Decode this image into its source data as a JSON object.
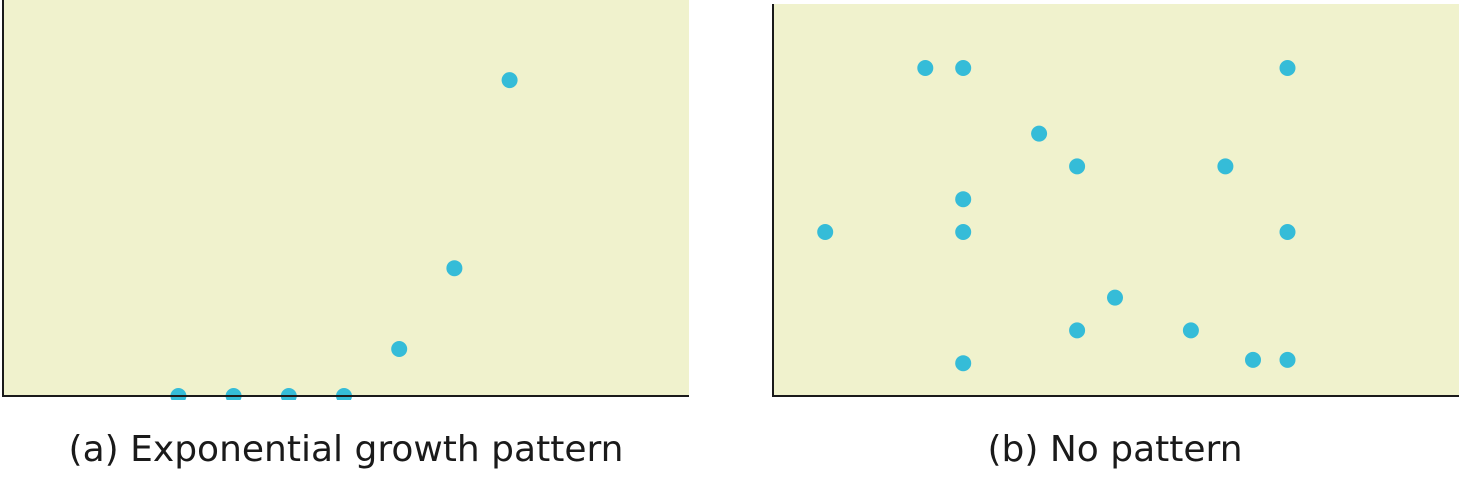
{
  "colors": {
    "plot_background": "#f0f2cd",
    "point": "#35bcd8",
    "axis": "#1a1a1a"
  },
  "chart_data": [
    {
      "type": "scatter",
      "caption": "(a) Exponential growth pattern",
      "xlim": [
        0,
        10
      ],
      "ylim": [
        0,
        10
      ],
      "grid": false,
      "points": [
        {
          "x": 2.0,
          "y": 0.0
        },
        {
          "x": 3.0,
          "y": 0.0
        },
        {
          "x": 4.0,
          "y": 0.0
        },
        {
          "x": 5.0,
          "y": 0.0
        },
        {
          "x": 6.0,
          "y": 1.34
        },
        {
          "x": 7.0,
          "y": 3.64
        },
        {
          "x": 8.0,
          "y": 9.0
        }
      ]
    },
    {
      "type": "scatter",
      "caption": "(b) No pattern",
      "xlim": [
        0,
        10
      ],
      "ylim": [
        0,
        10
      ],
      "grid": false,
      "points": [
        {
          "x": 2.25,
          "y": 10.0
        },
        {
          "x": 2.8,
          "y": 10.0
        },
        {
          "x": 7.5,
          "y": 10.0
        },
        {
          "x": 3.9,
          "y": 8.0
        },
        {
          "x": 4.45,
          "y": 7.0
        },
        {
          "x": 6.6,
          "y": 7.0
        },
        {
          "x": 2.8,
          "y": 6.0
        },
        {
          "x": 0.8,
          "y": 5.0
        },
        {
          "x": 2.8,
          "y": 5.0
        },
        {
          "x": 7.5,
          "y": 5.0
        },
        {
          "x": 5.0,
          "y": 3.0
        },
        {
          "x": 4.45,
          "y": 2.0
        },
        {
          "x": 6.1,
          "y": 2.0
        },
        {
          "x": 2.8,
          "y": 1.0
        },
        {
          "x": 7.0,
          "y": 1.1
        },
        {
          "x": 7.5,
          "y": 1.1
        }
      ]
    }
  ]
}
